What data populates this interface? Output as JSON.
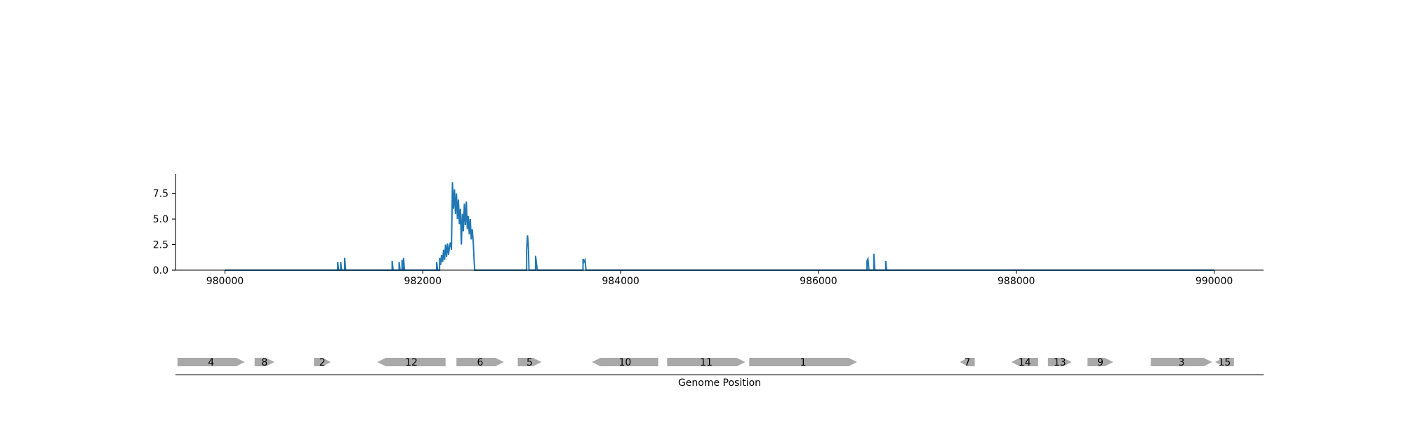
{
  "chart_data": [
    {
      "type": "line",
      "title": "",
      "xlabel": "",
      "ylabel": "",
      "xlim": [
        979500,
        990500
      ],
      "ylim": [
        0,
        9.4
      ],
      "x_ticks": [
        "980000",
        "982000",
        "984000",
        "986000",
        "988000",
        "990000"
      ],
      "y_ticks": [
        "0.0",
        "2.5",
        "5.0",
        "7.5"
      ],
      "colors": {
        "series": "#1f77b4"
      },
      "series": [
        {
          "values": [
            [
              980000,
              0
            ],
            [
              981140,
              0
            ],
            [
              981140,
              0.8
            ],
            [
              981150,
              0
            ],
            [
              981170,
              0
            ],
            [
              981170,
              0.8
            ],
            [
              981180,
              0
            ],
            [
              981210,
              0
            ],
            [
              981210,
              1.2
            ],
            [
              981220,
              0
            ],
            [
              981690,
              0
            ],
            [
              981690,
              0.9
            ],
            [
              981700,
              0
            ],
            [
              981760,
              0
            ],
            [
              981760,
              0.8
            ],
            [
              981770,
              0
            ],
            [
              981790,
              0
            ],
            [
              981790,
              1.0
            ],
            [
              981800,
              0
            ],
            [
              981805,
              0
            ],
            [
              981805,
              1.2
            ],
            [
              981815,
              0
            ],
            [
              982140,
              0
            ],
            [
              982140,
              0.8
            ],
            [
              982150,
              0
            ],
            [
              982170,
              0
            ],
            [
              982170,
              1.2
            ],
            [
              982180,
              0.5
            ],
            [
              982190,
              1.5
            ],
            [
              982200,
              0.8
            ],
            [
              982210,
              2.0
            ],
            [
              982220,
              1.0
            ],
            [
              982230,
              2.5
            ],
            [
              982240,
              1.3
            ],
            [
              982250,
              2.6
            ],
            [
              982260,
              1.5
            ],
            [
              982270,
              2.3
            ],
            [
              982280,
              2.7
            ],
            [
              982290,
              2.0
            ],
            [
              982300,
              8.6
            ],
            [
              982310,
              6.0
            ],
            [
              982320,
              7.9
            ],
            [
              982330,
              5.5
            ],
            [
              982340,
              7.5
            ],
            [
              982350,
              5.0
            ],
            [
              982360,
              6.9
            ],
            [
              982370,
              4.5
            ],
            [
              982380,
              6.0
            ],
            [
              982390,
              2.5
            ],
            [
              982400,
              5.5
            ],
            [
              982410,
              3.8
            ],
            [
              982420,
              6.5
            ],
            [
              982430,
              4.4
            ],
            [
              982440,
              6.7
            ],
            [
              982450,
              4.0
            ],
            [
              982460,
              5.3
            ],
            [
              982470,
              3.5
            ],
            [
              982480,
              5.0
            ],
            [
              982490,
              3.0
            ],
            [
              982500,
              4.0
            ],
            [
              982510,
              2.8
            ],
            [
              982520,
              0.8
            ],
            [
              982525,
              0
            ],
            [
              983050,
              0
            ],
            [
              983050,
              2.0
            ],
            [
              983058,
              3.4
            ],
            [
              983066,
              2.6
            ],
            [
              983074,
              0
            ],
            [
              983140,
              0
            ],
            [
              983140,
              1.4
            ],
            [
              983150,
              0.6
            ],
            [
              983158,
              0
            ],
            [
              983620,
              0
            ],
            [
              983620,
              1.1
            ],
            [
              983630,
              0.8
            ],
            [
              983640,
              1.0
            ],
            [
              983650,
              0
            ],
            [
              986490,
              0
            ],
            [
              986490,
              0.9
            ],
            [
              986500,
              1.1
            ],
            [
              986510,
              0
            ],
            [
              986560,
              0
            ],
            [
              986560,
              1.6
            ],
            [
              986570,
              0
            ],
            [
              986680,
              0
            ],
            [
              986680,
              0.9
            ],
            [
              986690,
              0
            ],
            [
              990000,
              0
            ]
          ]
        }
      ]
    },
    {
      "type": "gene-map",
      "xlabel": "Genome Position",
      "xlim": [
        979500,
        990500
      ],
      "colors": {
        "gene": "#a9a9a9"
      },
      "genes": [
        {
          "label": "4",
          "start": 979520,
          "end": 980200,
          "strand": "+"
        },
        {
          "label": "8",
          "start": 980300,
          "end": 980500,
          "strand": "+"
        },
        {
          "label": "2",
          "start": 980900,
          "end": 981070,
          "strand": "+"
        },
        {
          "label": "12",
          "start": 981540,
          "end": 982230,
          "strand": "-"
        },
        {
          "label": "6",
          "start": 982340,
          "end": 982820,
          "strand": "+"
        },
        {
          "label": "5",
          "start": 982960,
          "end": 983200,
          "strand": "+"
        },
        {
          "label": "10",
          "start": 983710,
          "end": 984380,
          "strand": "-"
        },
        {
          "label": "11",
          "start": 984470,
          "end": 985260,
          "strand": "+"
        },
        {
          "label": "1",
          "start": 985300,
          "end": 986390,
          "strand": "+"
        },
        {
          "label": "7",
          "start": 987430,
          "end": 987580,
          "strand": "-"
        },
        {
          "label": "14",
          "start": 987950,
          "end": 988220,
          "strand": "-"
        },
        {
          "label": "13",
          "start": 988320,
          "end": 988560,
          "strand": "+"
        },
        {
          "label": "9",
          "start": 988720,
          "end": 988980,
          "strand": "+"
        },
        {
          "label": "3",
          "start": 989360,
          "end": 989980,
          "strand": "+"
        },
        {
          "label": "15",
          "start": 990010,
          "end": 990200,
          "strand": "-"
        }
      ]
    }
  ]
}
